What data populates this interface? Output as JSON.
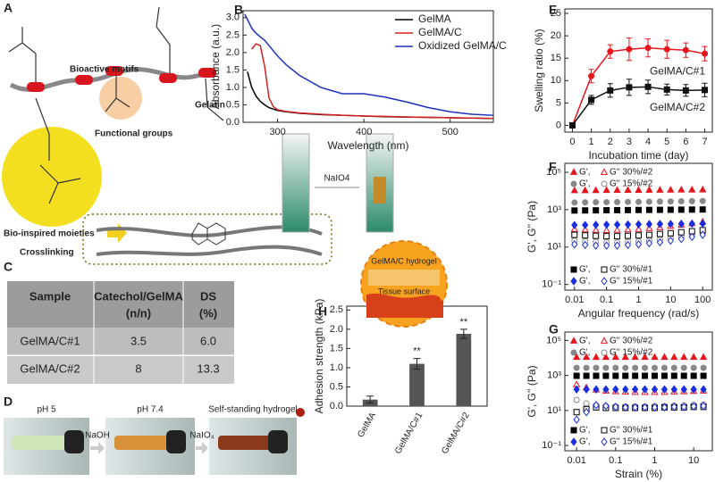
{
  "panel_labels": [
    "A",
    "B",
    "C",
    "D",
    "E",
    "F",
    "G",
    "H"
  ],
  "diagram_a": {
    "bioactive": "Bioactive motifs",
    "gelatin": "Gelatin",
    "functional": "Functional groups",
    "bioinspired": "Bio-inspired moieties",
    "crosslinking": "Crosslinking"
  },
  "photo_b": {
    "reagent": "NaIO4"
  },
  "table_c": {
    "header": [
      [
        "Sample"
      ],
      [
        "Catechol/GelMA",
        "(n/n)"
      ],
      [
        "DS",
        "(%)"
      ]
    ],
    "rows": [
      [
        "GelMA/C#1",
        "3.5",
        "6.0"
      ],
      [
        "GelMA/C#2",
        "8",
        "13.3"
      ]
    ]
  },
  "photos_d": {
    "labels": [
      "pH 5",
      "pH 7.4",
      "Self-standing hydrogel"
    ],
    "reagents": [
      "NaOH",
      "NaIO₄"
    ]
  },
  "chart_data": [
    {
      "type": "line",
      "xlabel": "Wavelength (nm)",
      "ylabel": "Absorbance (a.u.)",
      "legend": "upper right",
      "x": [
        262,
        265,
        270,
        275,
        280,
        285,
        290,
        295,
        300,
        310,
        325,
        350,
        375,
        400,
        425,
        450,
        475,
        500,
        525,
        550
      ],
      "xlim": [
        260,
        550
      ],
      "xticks": [
        300,
        400,
        500
      ],
      "ylim": [
        0,
        3.2
      ],
      "yticks": [
        {
          "value": 0,
          "label": "0.0"
        },
        0.5,
        {
          "value": 1,
          "label": "1.0"
        },
        1.5,
        {
          "value": 2,
          "label": "2.0"
        },
        2.5,
        {
          "value": 3,
          "label": "3.0"
        }
      ],
      "series": [
        {
          "name": "GelMA",
          "color": "#000000",
          "values": [
            null,
            1.45,
            1.0,
            0.75,
            0.6,
            0.5,
            0.42,
            0.38,
            0.34,
            0.3,
            0.26,
            0.22,
            0.2,
            0.18,
            0.16,
            0.15,
            0.14,
            0.13,
            0.12,
            0.11
          ]
        },
        {
          "name": "GelMA/C",
          "color": "#d42020",
          "values": [
            null,
            null,
            2.1,
            2.25,
            2.2,
            1.6,
            0.7,
            0.45,
            0.36,
            0.31,
            0.27,
            0.23,
            0.2,
            0.18,
            0.17,
            0.15,
            0.14,
            0.13,
            0.12,
            0.11
          ]
        },
        {
          "name": "Oxidized GelMA/C",
          "color": "#1f2fc0",
          "values": [
            3.1,
            2.95,
            2.7,
            2.55,
            2.45,
            2.35,
            2.2,
            2.05,
            1.9,
            1.65,
            1.35,
            1.0,
            0.82,
            0.82,
            0.72,
            0.58,
            0.42,
            0.3,
            0.23,
            0.2
          ]
        }
      ]
    },
    {
      "type": "line",
      "xlabel": "Incubation time (day)",
      "ylabel": "Swelling ratio (%)",
      "legend": "inline",
      "x": [
        0,
        1,
        2,
        3,
        4,
        5,
        6,
        7
      ],
      "xlim": [
        -0.4,
        7.4
      ],
      "xticks": [
        0,
        1,
        2,
        3,
        4,
        5,
        6,
        7
      ],
      "ylim": [
        -1.5,
        26
      ],
      "yticks": [
        0,
        5,
        10,
        15,
        20,
        25
      ],
      "series": [
        {
          "name": "GelMA/C#1",
          "color": "#e8141c",
          "marker": "circle",
          "values": [
            0,
            11,
            16.5,
            17,
            17.3,
            17,
            16.8,
            16
          ],
          "errors": [
            0.3,
            1.5,
            1.5,
            2.5,
            2,
            2,
            1.6,
            1.6
          ]
        },
        {
          "name": "GelMA/C#2",
          "color": "#111111",
          "marker": "square",
          "values": [
            0,
            5.7,
            7.8,
            8.5,
            8.6,
            8,
            7.8,
            7.9
          ],
          "errors": [
            0.3,
            1,
            1.5,
            1.8,
            1.5,
            1.2,
            1.3,
            1.5
          ]
        }
      ]
    },
    {
      "type": "scatter",
      "xlabel": "Angular frequency (rad/s)",
      "ylabel": "G', G'' (Pa)",
      "xscale": "log",
      "yscale": "log",
      "legend": "paired",
      "x": [
        0.01,
        0.0215,
        0.0464,
        0.1,
        0.215,
        0.464,
        1,
        2.15,
        4.64,
        10,
        21.5,
        46.4,
        100
      ],
      "xlim": [
        0.005,
        200
      ],
      "xticks": [
        0.01,
        0.1,
        1,
        10,
        100
      ],
      "ylim": [
        0.05,
        300000
      ],
      "yticks": [
        {
          "value": 0.1,
          "label": "10⁻¹"
        },
        {
          "value": 10,
          "label": "10¹"
        },
        {
          "value": 1000,
          "label": "10³"
        },
        {
          "value": 100000,
          "label": "10⁵"
        }
      ],
      "series": [
        {
          "name": "G',",
          "color": "#e8141c",
          "marker": "triangle",
          "filled": true,
          "values": [
            10500,
            10600,
            10700,
            10800,
            10900,
            11000,
            11000,
            11100,
            11200,
            11300,
            11400,
            11500,
            11600
          ]
        },
        {
          "name": "G'' 30%/#2",
          "color": "#e8141c",
          "marker": "triangle",
          "filled": false,
          "values": [
            90,
            85,
            80,
            78,
            80,
            85,
            90,
            100,
            110,
            130,
            150,
            180,
            220
          ]
        },
        {
          "name": "G',",
          "color": "#888888",
          "marker": "circle",
          "filled": true,
          "values": [
            2400,
            2450,
            2500,
            2500,
            2550,
            2600,
            2600,
            2650,
            2700,
            2750,
            2800,
            2850,
            2900
          ]
        },
        {
          "name": "G'' 15%/#2",
          "color": "#888888",
          "marker": "circle",
          "filled": false,
          "values": [
            22,
            20,
            19,
            18,
            18,
            19,
            20,
            22,
            25,
            30,
            36,
            45,
            60
          ]
        },
        {
          "name": "G',",
          "color": "#000000",
          "marker": "square",
          "filled": true,
          "values": [
            900,
            910,
            920,
            930,
            940,
            950,
            960,
            970,
            980,
            990,
            1000,
            1010,
            1020
          ]
        },
        {
          "name": "G'' 30%/#1",
          "color": "#000000",
          "marker": "square",
          "filled": false,
          "values": [
            45,
            42,
            40,
            38,
            38,
            40,
            42,
            45,
            50,
            55,
            62,
            70,
            80
          ]
        },
        {
          "name": "G',",
          "color": "#1a2ee0",
          "marker": "diamond",
          "filled": true,
          "values": [
            150,
            152,
            155,
            158,
            160,
            162,
            165,
            168,
            170,
            172,
            175,
            178,
            180
          ]
        },
        {
          "name": "G'' 15%/#1",
          "color": "#1a2ee0",
          "marker": "diamond",
          "filled": false,
          "values": [
            14,
            13,
            12,
            12,
            12,
            13,
            14,
            16,
            18,
            22,
            27,
            35,
            45
          ]
        }
      ]
    },
    {
      "type": "scatter",
      "xlabel": "Strain (%)",
      "ylabel": "G', G'' (Pa)",
      "xscale": "log",
      "yscale": "log",
      "legend": "paired",
      "x": [
        0.01,
        0.0178,
        0.0316,
        0.0562,
        0.1,
        0.178,
        0.316,
        0.562,
        1,
        1.78,
        3.16,
        5.62,
        10,
        17.8
      ],
      "xlim": [
        0.005,
        30
      ],
      "xticks": [
        0.01,
        0.1,
        1,
        10
      ],
      "ylim": [
        0.05,
        300000
      ],
      "yticks": [
        {
          "value": 0.1,
          "label": "10⁻¹"
        },
        {
          "value": 10,
          "label": "10¹"
        },
        {
          "value": 1000,
          "label": "10³"
        },
        {
          "value": 100000,
          "label": "10⁵"
        }
      ],
      "series": [
        {
          "name": "G',",
          "color": "#e8141c",
          "marker": "triangle",
          "filled": true,
          "values": [
            11000,
            11000,
            11000,
            11000,
            11000,
            11000,
            11000,
            11000,
            11000,
            11000,
            11000,
            11000,
            11000,
            11000
          ]
        },
        {
          "name": "G'' 30%/#2",
          "color": "#e8141c",
          "marker": "triangle",
          "filled": false,
          "values": [
            300,
            200,
            150,
            130,
            120,
            115,
            110,
            110,
            110,
            110,
            115,
            120,
            125,
            130
          ]
        },
        {
          "name": "G',",
          "color": "#888888",
          "marker": "circle",
          "filled": true,
          "values": [
            2700,
            2700,
            2700,
            2700,
            2700,
            2700,
            2700,
            2700,
            2700,
            2700,
            2700,
            2700,
            2700,
            2700
          ]
        },
        {
          "name": "G'' 15%/#2",
          "color": "#888888",
          "marker": "circle",
          "filled": false,
          "values": [
            40,
            25,
            20,
            18,
            17,
            17,
            17,
            17,
            18,
            18,
            19,
            20,
            21,
            22
          ]
        },
        {
          "name": "G',",
          "color": "#000000",
          "marker": "square",
          "filled": true,
          "values": [
            950,
            950,
            950,
            950,
            950,
            950,
            950,
            950,
            950,
            950,
            950,
            950,
            950,
            950
          ]
        },
        {
          "name": "G'' 30%/#1",
          "color": "#000000",
          "marker": "square",
          "filled": false,
          "values": [
            8,
            12,
            15,
            14,
            14,
            14,
            14,
            14,
            14,
            15,
            15,
            15,
            16,
            16
          ]
        },
        {
          "name": "G',",
          "color": "#1a2ee0",
          "marker": "diamond",
          "filled": true,
          "values": [
            160,
            160,
            160,
            160,
            160,
            160,
            160,
            160,
            160,
            160,
            160,
            160,
            160,
            160
          ]
        },
        {
          "name": "G'' 15%/#1",
          "color": "#1a2ee0",
          "marker": "diamond",
          "filled": false,
          "values": [
            3,
            8,
            20,
            18,
            16,
            15,
            15,
            15,
            15,
            15,
            16,
            16,
            17,
            18
          ]
        }
      ]
    },
    {
      "type": "bar",
      "ylabel": "Adhesion strength (kPa)",
      "categories": [
        "GelMA",
        "GelMA/C#1",
        "GelMA/C#2"
      ],
      "values": [
        0.17,
        1.1,
        1.88
      ],
      "errors": [
        0.09,
        0.14,
        0.12
      ],
      "color": "#555555",
      "annotations": [
        null,
        "**",
        "**"
      ],
      "inset_labels": [
        "GelMA/C hydrogel",
        "Tissue surface"
      ],
      "ylim": [
        0,
        2.6
      ],
      "yticks": [
        {
          "value": 0,
          "label": "0.0"
        },
        0.5,
        {
          "value": 1,
          "label": "1.0"
        },
        1.5,
        {
          "value": 2,
          "label": "2.0"
        },
        2.5
      ]
    }
  ]
}
